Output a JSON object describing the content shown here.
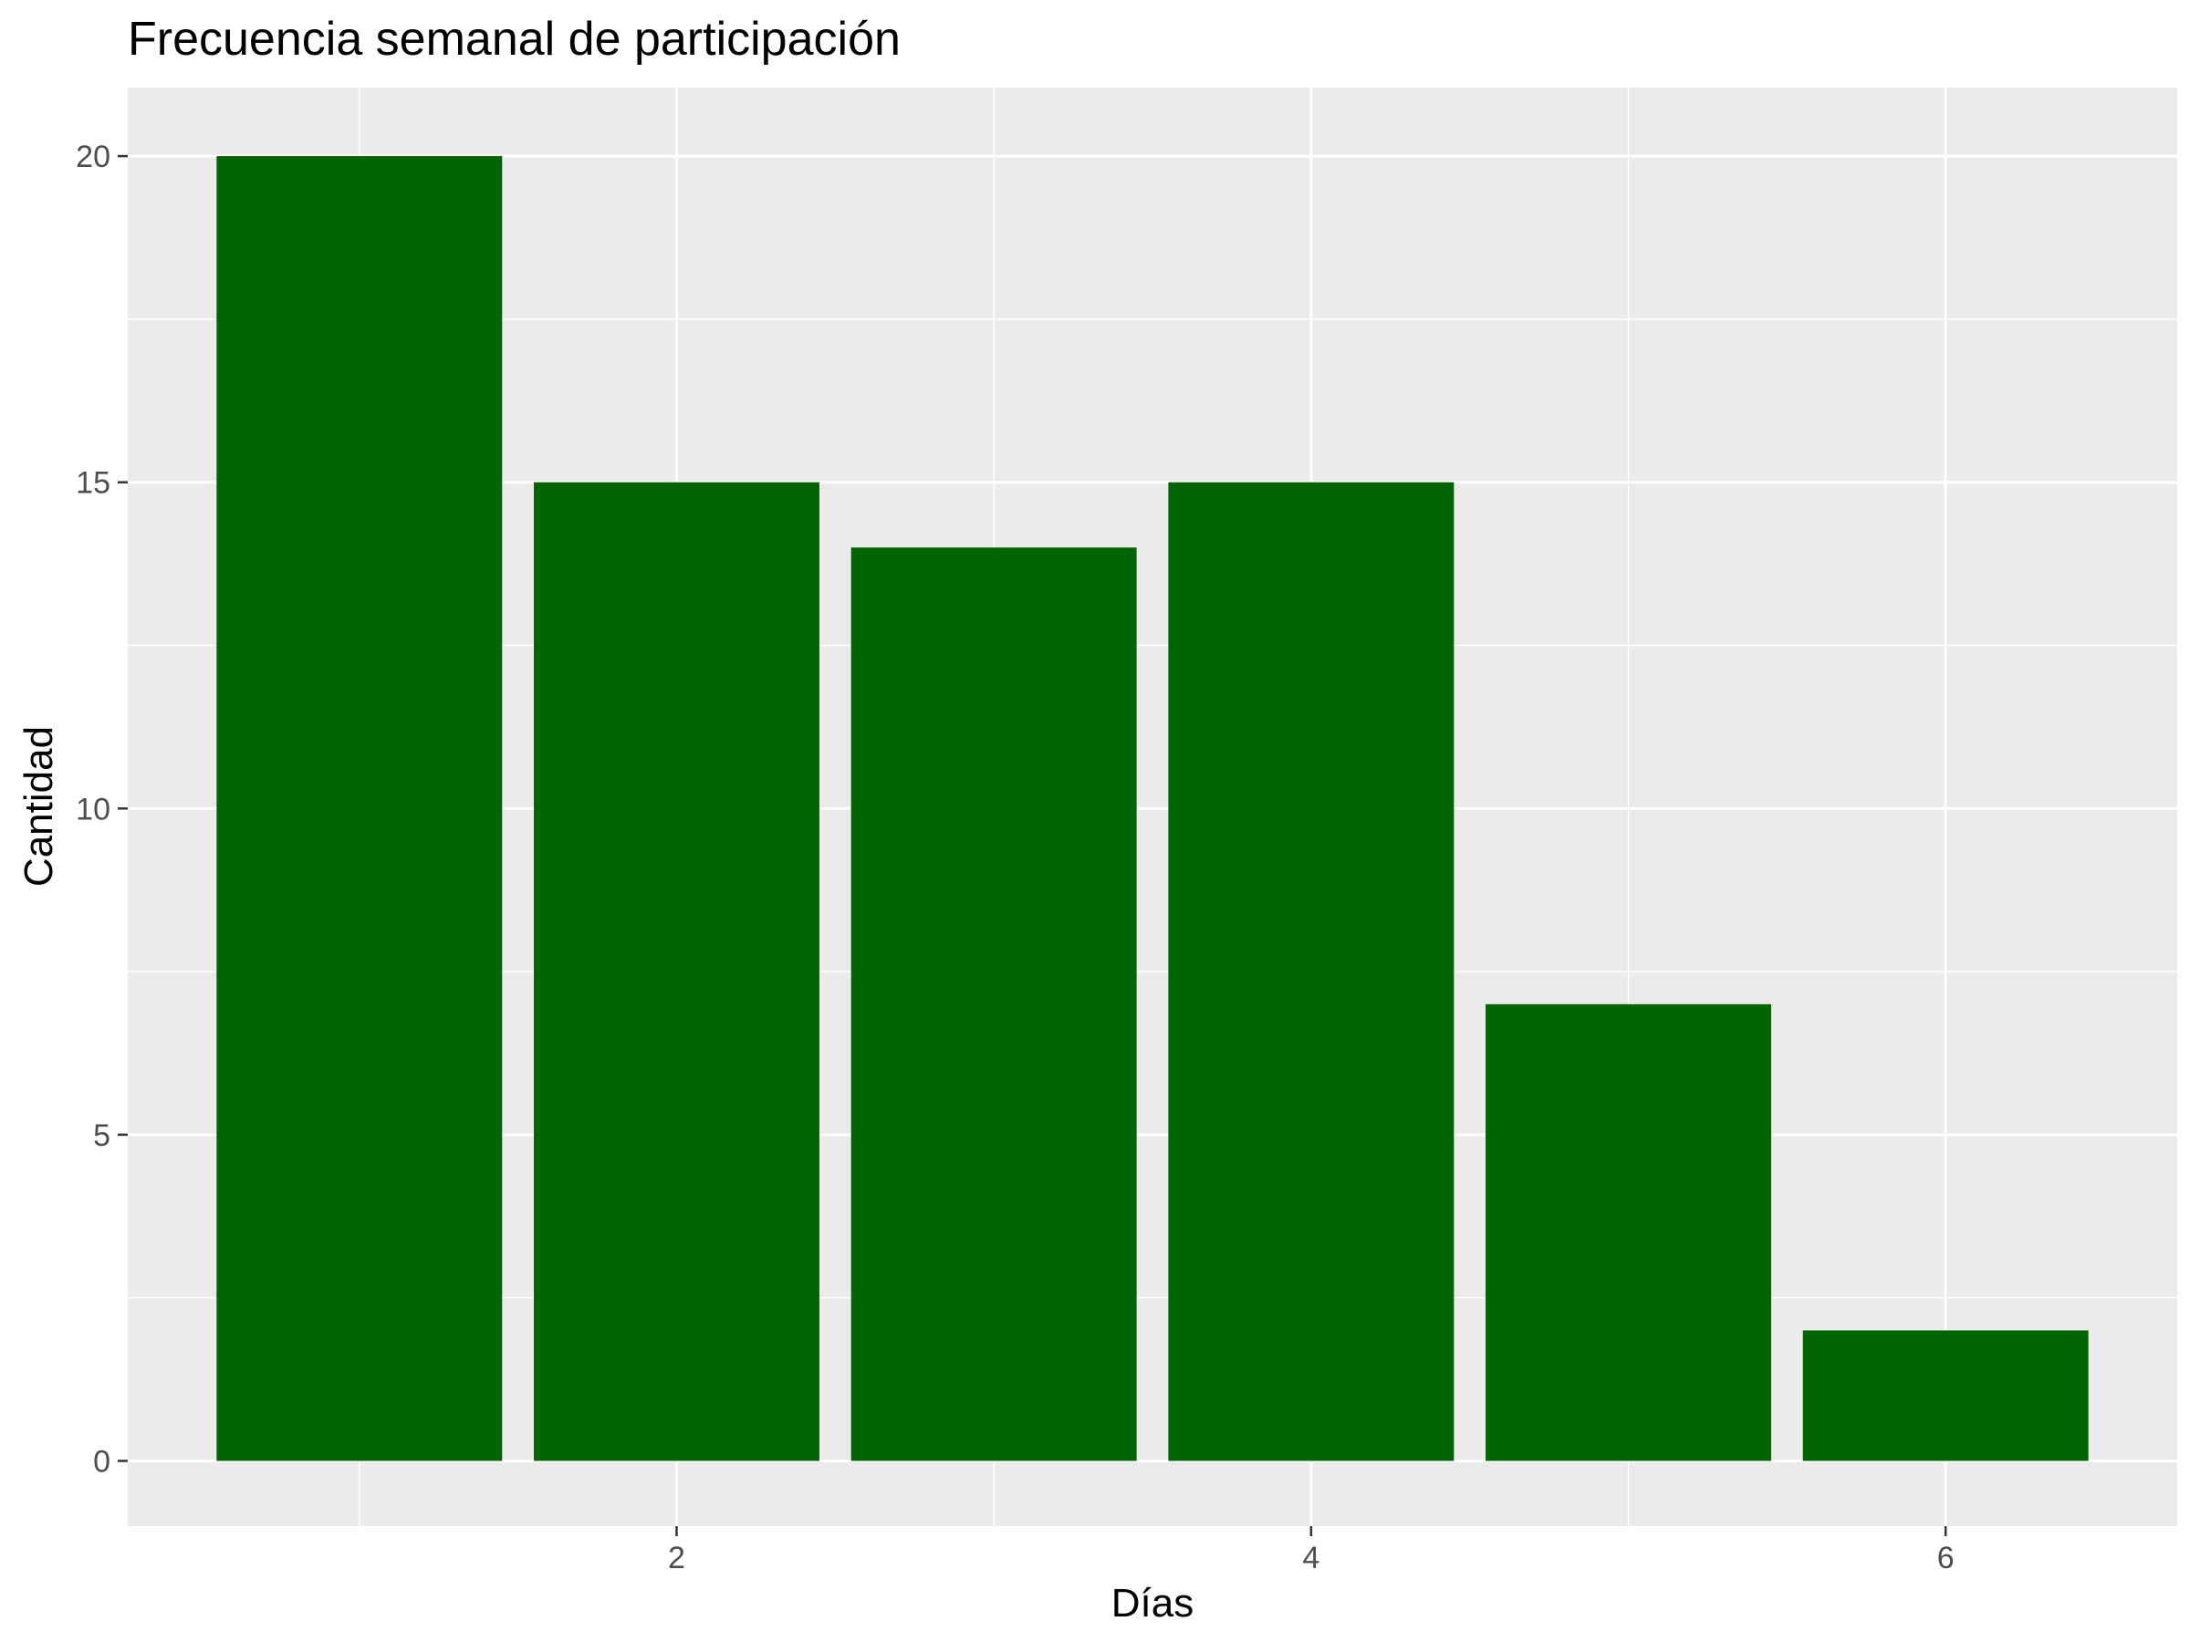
{
  "chart_data": {
    "type": "bar",
    "title": "Frecuencia semanal de participación",
    "xlabel": "Días",
    "ylabel": "Cantidad",
    "x": [
      1,
      2,
      3,
      4,
      5,
      6
    ],
    "values": [
      20,
      15,
      14,
      15,
      7,
      2
    ],
    "xlim": [
      0.27,
      6.73
    ],
    "ylim": [
      -1,
      21.05
    ],
    "x_ticks": [
      2,
      4,
      6
    ],
    "y_ticks": [
      0,
      5,
      10,
      15,
      20
    ],
    "x_tick_labels": [
      "2",
      "4",
      "6"
    ],
    "y_tick_labels": [
      "0",
      "5",
      "10",
      "15",
      "20"
    ],
    "grid": true,
    "legend": "none",
    "colors": {
      "bar": "#006400",
      "panel_background": "#ebebeb",
      "grid": "#ffffff"
    }
  }
}
